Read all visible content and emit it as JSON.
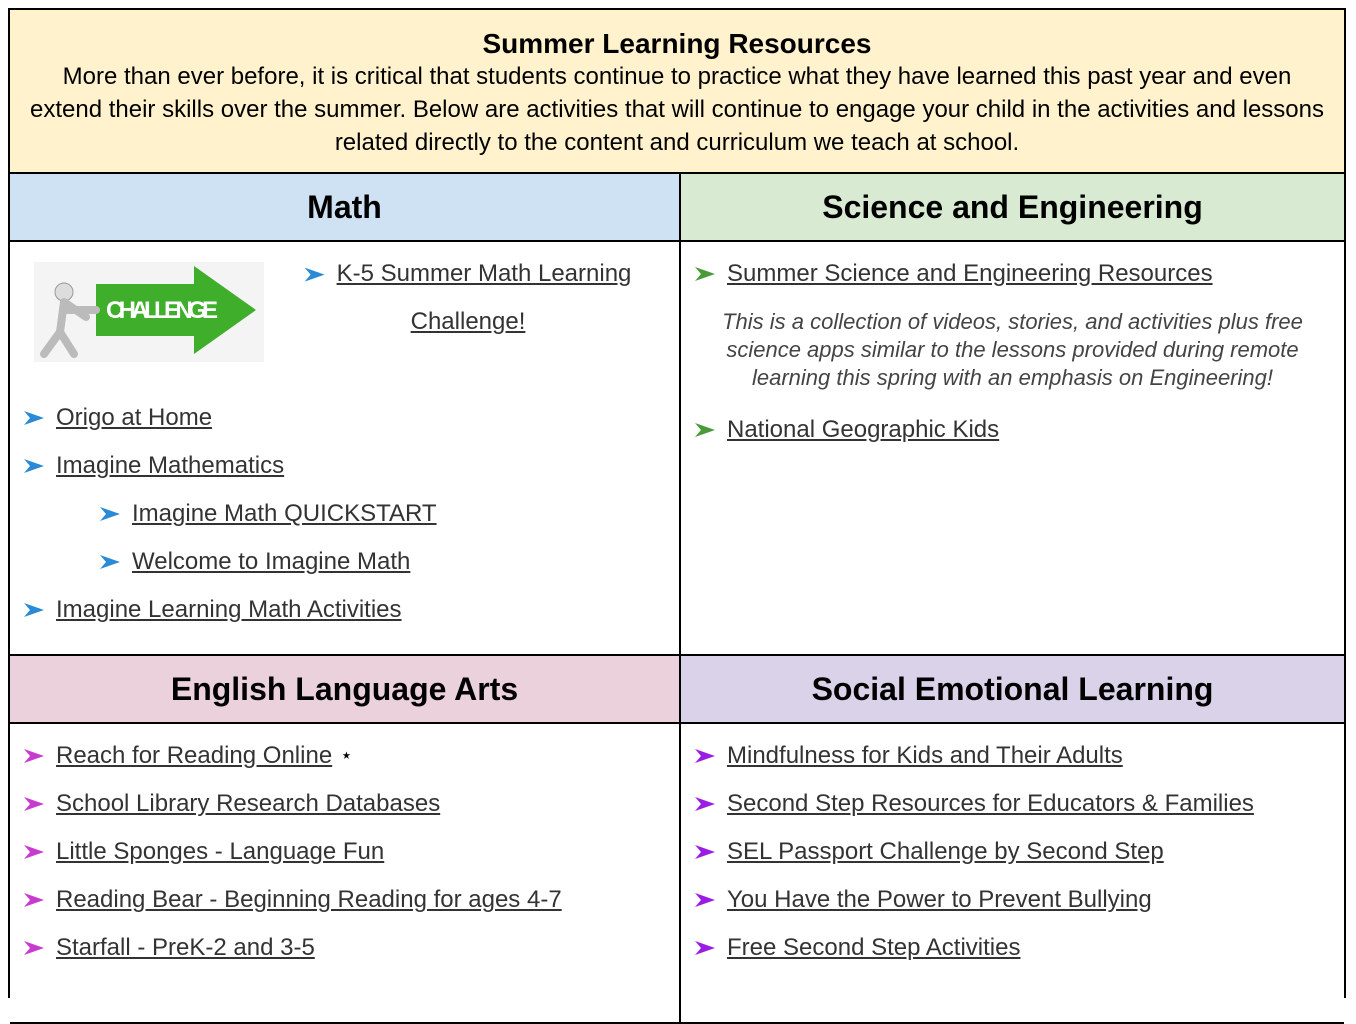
{
  "header": {
    "title": "Summer Learning Resources",
    "description": "More than ever before, it is critical that students continue to practice what they have learned this past year and even extend their skills over the summer. Below are activities that will continue to engage your child in the activities and lessons related directly to the content and curriculum we teach at school."
  },
  "sections": [
    {
      "title": "Math",
      "image_label": "CHALLENGE",
      "featured": {
        "text": "K-5 Summer Math Learning Challenge!"
      },
      "items": [
        {
          "text": "Origo at Home"
        },
        {
          "text": "Imagine Mathematics",
          "children": [
            {
              "text": "Imagine Math QUICKSTART"
            },
            {
              "text": "Welcome to Imagine Math"
            }
          ]
        },
        {
          "text": "Imagine Learning Math Activities"
        }
      ]
    },
    {
      "title": "Science and Engineering",
      "items": [
        {
          "text": "Summer Science and Engineering Resources",
          "description": "This is a collection of videos, stories, and activities plus free science apps similar to the lessons provided during remote learning this spring with an emphasis on Engineering!"
        },
        {
          "text": "National Geographic Kids"
        }
      ]
    },
    {
      "title": "English Language Arts",
      "items": [
        {
          "text": "Reach for Reading Online",
          "note": "⭑"
        },
        {
          "text": "School Library Research Databases"
        },
        {
          "text": "Little Sponges - Language Fun"
        },
        {
          "text": "Reading Bear - Beginning Reading for ages 4-7"
        },
        {
          "text": "Starfall - PreK-2 and 3-5"
        }
      ]
    },
    {
      "title": "Social Emotional Learning",
      "items": [
        {
          "text": "Mindfulness for Kids and Their Adults"
        },
        {
          "text": "Second Step Resources for Educators & Families"
        },
        {
          "text": "SEL Passport Challenge by Second Step"
        },
        {
          "text": "You Have the Power to Prevent Bullying"
        },
        {
          "text": "Free Second Step Activities"
        }
      ]
    }
  ]
}
